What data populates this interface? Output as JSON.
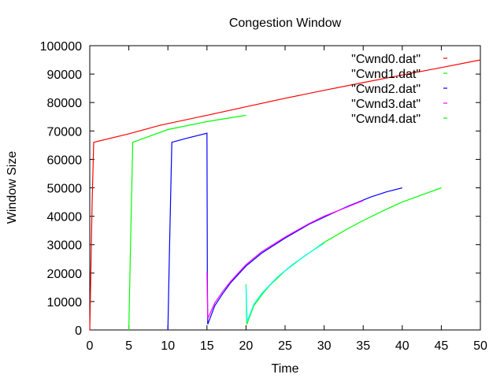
{
  "chart_data": {
    "type": "line",
    "title": "Congestion Window",
    "xlabel": "Time",
    "ylabel": "Window Size",
    "xlim": [
      0,
      50
    ],
    "ylim": [
      0,
      100000
    ],
    "x_ticks": [
      0,
      5,
      10,
      15,
      20,
      25,
      30,
      35,
      40,
      45,
      50
    ],
    "y_ticks": [
      0,
      10000,
      20000,
      30000,
      40000,
      50000,
      60000,
      70000,
      80000,
      90000,
      100000
    ],
    "grid": false,
    "legend_position": "top-right",
    "series": [
      {
        "name": "\"Cwnd0.dat\"",
        "color": "#ff0000",
        "points": [
          [
            0,
            0
          ],
          [
            0.3,
            45000
          ],
          [
            0.5,
            66000
          ],
          [
            5,
            69000
          ],
          [
            9,
            72000
          ],
          [
            15,
            75500
          ],
          [
            20,
            78500
          ],
          [
            25,
            81500
          ],
          [
            30,
            84300
          ],
          [
            35,
            87000
          ],
          [
            40,
            89700
          ],
          [
            45,
            92300
          ],
          [
            50,
            95000
          ]
        ]
      },
      {
        "name": "\"Cwnd1.dat\"",
        "color": "#00ff00",
        "points": [
          [
            5,
            0
          ],
          [
            5.2,
            28000
          ],
          [
            5.5,
            66000
          ],
          [
            10,
            70500
          ],
          [
            15,
            73300
          ],
          [
            20,
            75500
          ]
        ]
      },
      {
        "name": "\"Cwnd2.dat\"",
        "color": "#0000ff",
        "points": [
          [
            10,
            0
          ],
          [
            10.2,
            28000
          ],
          [
            10.5,
            66000
          ],
          [
            12.5,
            67500
          ],
          [
            15,
            69200
          ],
          [
            15.05,
            20000
          ],
          [
            15.1,
            2000
          ],
          [
            16,
            8500
          ],
          [
            17,
            12700
          ],
          [
            18,
            16500
          ],
          [
            19,
            19500
          ],
          [
            20,
            22500
          ],
          [
            22,
            27000
          ],
          [
            25,
            32300
          ],
          [
            28,
            37100
          ],
          [
            30,
            39700
          ],
          [
            33,
            43500
          ],
          [
            36,
            46800
          ],
          [
            38,
            48600
          ],
          [
            40,
            50000
          ]
        ]
      },
      {
        "name": "\"Cwnd3.dat\"",
        "color": "#ff00ff",
        "points": [
          [
            15,
            20500
          ],
          [
            15.1,
            4000
          ],
          [
            16,
            9500
          ],
          [
            17,
            13500
          ],
          [
            18,
            17000
          ],
          [
            19,
            20000
          ],
          [
            20,
            23000
          ],
          [
            22,
            27500
          ],
          [
            25,
            32700
          ],
          [
            28,
            37300
          ],
          [
            30,
            40000
          ],
          [
            33,
            43300
          ],
          [
            35,
            45500
          ]
        ]
      },
      {
        "name": "\"Cwnd4.dat\"",
        "color": "#00ff00",
        "points": [
          [
            20,
            16000
          ],
          [
            20.1,
            2000
          ],
          [
            21,
            8500
          ],
          [
            22,
            12300
          ],
          [
            23,
            15600
          ],
          [
            25,
            20800
          ],
          [
            27,
            25000
          ],
          [
            30,
            30800
          ],
          [
            33,
            35600
          ],
          [
            35,
            38500
          ],
          [
            38,
            42500
          ],
          [
            40,
            45000
          ],
          [
            43,
            48000
          ],
          [
            45,
            50000
          ]
        ]
      },
      {
        "name": "",
        "color": "#00ffff",
        "points": [
          [
            20,
            15500
          ],
          [
            20.15,
            3000
          ],
          [
            21,
            9000
          ],
          [
            22,
            12800
          ],
          [
            24,
            18600
          ],
          [
            26,
            23100
          ],
          [
            28,
            27000
          ],
          [
            30,
            30500
          ]
        ]
      }
    ]
  }
}
